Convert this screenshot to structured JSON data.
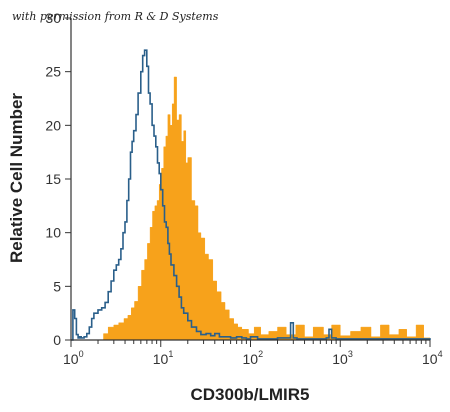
{
  "credit_text": "with permission from R & D Systems",
  "chart_data": {
    "type": "area",
    "title": "",
    "xlabel": "CD300b/LMIR5",
    "ylabel": "Relative Cell Number",
    "xscale": "log",
    "xlim": [
      1,
      10000
    ],
    "ylim": [
      0,
      30
    ],
    "x_ticks": [
      {
        "base": "10",
        "exp": "0",
        "value": 1
      },
      {
        "base": "10",
        "exp": "1",
        "value": 10
      },
      {
        "base": "10",
        "exp": "2",
        "value": 100
      },
      {
        "base": "10",
        "exp": "3",
        "value": 1000
      },
      {
        "base": "10",
        "exp": "4",
        "value": 10000
      }
    ],
    "y_ticks": [
      "0",
      "5",
      "10",
      "15",
      "20",
      "25",
      "30"
    ],
    "grid": false,
    "series": [
      {
        "style": "filled",
        "color": "#F7A21B",
        "x": [
          1,
          2.1,
          2.3,
          2.6,
          3.0,
          3.4,
          3.9,
          4.3,
          4.7,
          5.1,
          5.6,
          6.1,
          6.6,
          7.1,
          7.6,
          8.1,
          8.6,
          9.1,
          9.6,
          10.2,
          10.8,
          11.4,
          12.0,
          12.7,
          13.4,
          14.1,
          15.0,
          16.0,
          17.0,
          18.0,
          19.0,
          20.0,
          22.0,
          24.0,
          26.0,
          28.0,
          31.0,
          34.0,
          38.0,
          42.0,
          47.0,
          52.0,
          58.0,
          65.0,
          72.0,
          80.0,
          95.0,
          110.0,
          130.0,
          160.0,
          200.0,
          250.0,
          320.0,
          400.0,
          500.0,
          650.0,
          800.0,
          1000.0,
          1300.0,
          1700.0,
          2200.0,
          2800.0,
          3500.0,
          4500.0,
          5500.0,
          7000.0,
          8500.0,
          10000
        ],
        "y": [
          0,
          0,
          0.6,
          1.2,
          1.4,
          1.6,
          2.0,
          2.3,
          3.0,
          3.6,
          5.0,
          6.5,
          7.5,
          9.0,
          10.5,
          12.0,
          12.5,
          13.0,
          14.5,
          16.0,
          18.0,
          19.0,
          21.0,
          20.0,
          22.0,
          24.5,
          20.5,
          21.0,
          18.5,
          19.5,
          16.5,
          17.0,
          13.0,
          12.5,
          10.0,
          9.5,
          8.0,
          7.5,
          5.5,
          4.5,
          3.5,
          2.8,
          2.0,
          1.5,
          1.2,
          1.0,
          0.6,
          1.2,
          0.5,
          0.8,
          1.2,
          0.5,
          1.4,
          0.3,
          1.2,
          0.5,
          1.4,
          0.4,
          0.8,
          1.2,
          0.3,
          1.4,
          0.5,
          1.0,
          0.3,
          1.4,
          0.2,
          0
        ]
      },
      {
        "style": "outline",
        "color": "#2A5F8A",
        "x": [
          1,
          1.05,
          1.1,
          1.15,
          1.2,
          1.25,
          1.3,
          1.4,
          1.5,
          1.6,
          1.7,
          1.8,
          1.9,
          2.0,
          2.2,
          2.4,
          2.6,
          2.8,
          3.0,
          3.2,
          3.4,
          3.6,
          3.8,
          4.0,
          4.2,
          4.4,
          4.6,
          4.8,
          5.0,
          5.3,
          5.6,
          6.0,
          6.3,
          6.6,
          7.0,
          7.3,
          7.6,
          8.0,
          8.4,
          8.8,
          9.2,
          9.6,
          10.0,
          10.5,
          11.0,
          11.5,
          12.0,
          12.5,
          13.0,
          14.0,
          15.0,
          16.0,
          17.0,
          18.0,
          20.0,
          22.0,
          25.0,
          28.0,
          32.0,
          36.0,
          40.0,
          45.0,
          50.0,
          60.0,
          70.0,
          80.0,
          90.0,
          100.0,
          120.0,
          150.0,
          200.0,
          260.0,
          280.0,
          300.0,
          330.0,
          400.0,
          600.0,
          700.0,
          750.0,
          800.0,
          900.0,
          1200.0,
          3000.0,
          10000
        ],
        "y": [
          0,
          2.8,
          2.0,
          0.5,
          0.2,
          0.3,
          0.2,
          0.3,
          0.6,
          1.2,
          2.0,
          2.5,
          2.5,
          2.8,
          3.0,
          3.5,
          4.5,
          5.5,
          6.5,
          7.0,
          7.5,
          8.5,
          10.0,
          11.0,
          13.0,
          15.0,
          17.5,
          18.5,
          19.5,
          21.0,
          23.0,
          25.0,
          26.5,
          27.0,
          25.5,
          23.0,
          22.0,
          20.0,
          19.0,
          18.0,
          16.5,
          15.5,
          14.0,
          12.5,
          11.0,
          10.5,
          9.0,
          8.0,
          7.0,
          6.0,
          5.0,
          4.0,
          3.0,
          2.5,
          1.8,
          1.2,
          0.8,
          0.5,
          0.6,
          0.4,
          0.6,
          0.3,
          0.3,
          0.2,
          0.3,
          0.2,
          0.1,
          0.3,
          0.1,
          0.1,
          0.2,
          0.2,
          1.6,
          0.2,
          0.1,
          0.1,
          0.1,
          0.2,
          1.0,
          0.2,
          0.1,
          0.1,
          0.1,
          0
        ]
      }
    ]
  }
}
